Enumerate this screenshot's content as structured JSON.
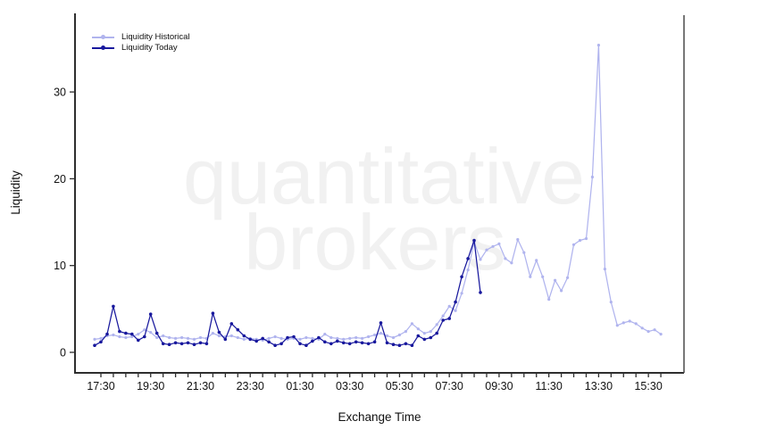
{
  "watermark": {
    "line1": "quantitative",
    "line2": "brokers",
    "color": "#f1f1f1"
  },
  "axes": {
    "y_label": "Liquidity",
    "x_label": "Exchange Time"
  },
  "legend": {
    "position": "top-left",
    "items": [
      {
        "label": "Liquidity Historical",
        "color": "#b0b4ee"
      },
      {
        "label": "Liquidity Today",
        "color": "#18189d"
      }
    ]
  },
  "chart_data": {
    "type": "line",
    "title": "",
    "xlabel": "Exchange Time",
    "ylabel": "Liquidity",
    "x_axis": {
      "start": "17:30",
      "end": "16:00",
      "major_tick_labels": [
        "17:30",
        "19:30",
        "21:30",
        "23:30",
        "01:30",
        "03:30",
        "05:30",
        "07:30",
        "09:30",
        "11:30",
        "13:30",
        "15:30"
      ],
      "minor_tick_every_min": 30
    },
    "y_axis": {
      "ticks": [
        0,
        10,
        20,
        30
      ],
      "ylim": [
        0,
        36
      ]
    },
    "grid": false,
    "legend_position": "top-left",
    "series": [
      {
        "name": "Liquidity Historical",
        "color": "#b0b4ee",
        "marker": "circle",
        "start": "17:15",
        "interval_min": 15,
        "values": [
          1.5,
          1.6,
          1.9,
          2.0,
          1.8,
          1.7,
          1.8,
          2.1,
          2.6,
          2.3,
          1.7,
          1.9,
          1.7,
          1.6,
          1.7,
          1.6,
          1.5,
          1.7,
          1.6,
          2.2,
          1.9,
          1.8,
          1.9,
          1.7,
          1.5,
          1.6,
          1.5,
          1.4,
          1.6,
          1.8,
          1.6,
          1.5,
          1.6,
          1.5,
          1.7,
          1.6,
          1.5,
          2.1,
          1.7,
          1.6,
          1.5,
          1.6,
          1.7,
          1.6,
          1.8,
          2.0,
          2.2,
          1.9,
          1.7,
          2.0,
          2.4,
          3.3,
          2.7,
          2.2,
          2.4,
          3.2,
          4.2,
          5.3,
          4.8,
          6.8,
          9.5,
          12.7,
          10.7,
          11.8,
          12.2,
          12.5,
          10.8,
          10.3,
          13.0,
          11.5,
          8.7,
          10.6,
          8.7,
          6.1,
          8.3,
          7.1,
          8.6,
          12.4,
          12.9,
          13.1,
          20.2,
          35.4,
          9.6,
          5.8,
          3.1,
          3.4,
          3.6,
          3.3,
          2.8,
          2.4,
          2.6,
          2.1
        ]
      },
      {
        "name": "Liquidity Today",
        "color": "#18189d",
        "marker": "circle",
        "start": "17:15",
        "interval_min": 15,
        "values": [
          0.8,
          1.2,
          2.1,
          5.3,
          2.4,
          2.2,
          2.1,
          1.4,
          1.8,
          4.4,
          2.2,
          1.0,
          0.9,
          1.1,
          1.0,
          1.1,
          0.9,
          1.1,
          1.0,
          4.5,
          2.3,
          1.5,
          3.3,
          2.6,
          1.9,
          1.5,
          1.3,
          1.6,
          1.2,
          0.8,
          1.0,
          1.7,
          1.8,
          1.0,
          0.8,
          1.3,
          1.7,
          1.2,
          1.0,
          1.3,
          1.1,
          1.0,
          1.2,
          1.1,
          1.0,
          1.2,
          3.4,
          1.1,
          0.9,
          0.8,
          1.0,
          0.8,
          1.9,
          1.5,
          1.7,
          2.2,
          3.7,
          3.9,
          5.8,
          8.7,
          10.8,
          12.9,
          6.9
        ]
      }
    ]
  }
}
